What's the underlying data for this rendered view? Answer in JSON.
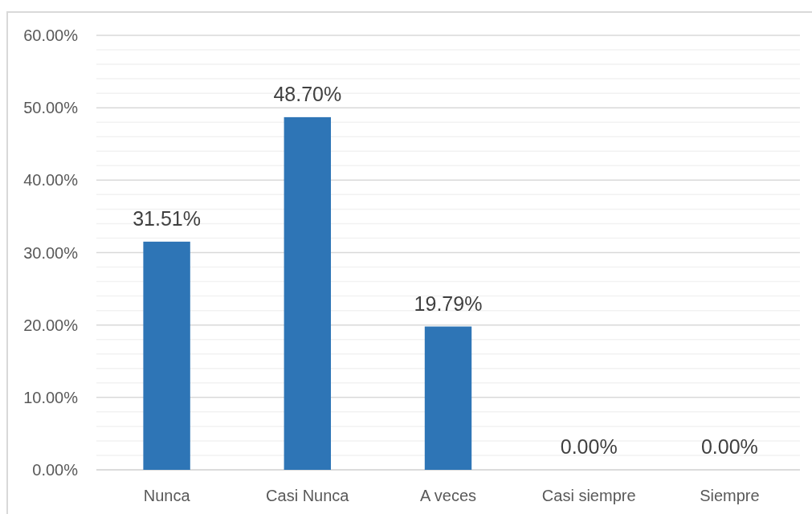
{
  "chart_data": {
    "type": "bar",
    "categories": [
      "Nunca",
      "Casi Nunca",
      "A veces",
      "Casi siempre",
      "Siempre"
    ],
    "values": [
      31.51,
      48.7,
      19.79,
      0,
      0
    ],
    "value_labels": [
      "31.51%",
      "48.70%",
      "19.79%",
      "0.00%",
      "0.00%"
    ],
    "color": "#2e75b6",
    "ylim": [
      0,
      60
    ],
    "yticks": [
      {
        "value": 0,
        "label": "0.00%"
      },
      {
        "value": 2,
        "label": null
      },
      {
        "value": 4,
        "label": null
      },
      {
        "value": 6,
        "label": null
      },
      {
        "value": 8,
        "label": null
      },
      {
        "value": 10,
        "label": "10.00%"
      },
      {
        "value": 12,
        "label": null
      },
      {
        "value": 14,
        "label": null
      },
      {
        "value": 16,
        "label": null
      },
      {
        "value": 18,
        "label": null
      },
      {
        "value": 20,
        "label": "20.00%"
      },
      {
        "value": 22,
        "label": null
      },
      {
        "value": 24,
        "label": null
      },
      {
        "value": 26,
        "label": null
      },
      {
        "value": 28,
        "label": null
      },
      {
        "value": 30,
        "label": "30.00%"
      },
      {
        "value": 32,
        "label": null
      },
      {
        "value": 34,
        "label": null
      },
      {
        "value": 36,
        "label": null
      },
      {
        "value": 38,
        "label": null
      },
      {
        "value": 40,
        "label": "40.00%"
      },
      {
        "value": 42,
        "label": null
      },
      {
        "value": 44,
        "label": null
      },
      {
        "value": 46,
        "label": null
      },
      {
        "value": 48,
        "label": null
      },
      {
        "value": 50,
        "label": "50.00%"
      },
      {
        "value": 52,
        "label": null
      },
      {
        "value": 54,
        "label": null
      },
      {
        "value": 56,
        "label": null
      },
      {
        "value": 58,
        "label": null
      },
      {
        "value": 60,
        "label": "60.00%"
      }
    ],
    "grid": "y"
  }
}
